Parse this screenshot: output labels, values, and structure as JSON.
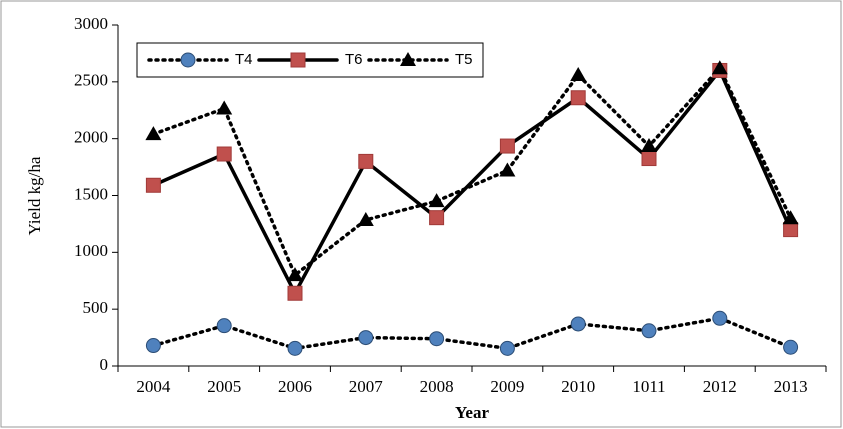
{
  "chart_data": {
    "type": "line",
    "y_label": "Yield kg/ha",
    "x_label": "Year",
    "categories": [
      "2004",
      "2005",
      "2006",
      "2007",
      "2008",
      "2009",
      "2010",
      "1011",
      "2012",
      "2013"
    ],
    "series": [
      {
        "name": "T4",
        "color": "#4f81bd",
        "line_color": "#000000",
        "line_style": "dotted",
        "marker": "circle",
        "values": [
          180,
          355,
          155,
          250,
          240,
          155,
          370,
          310,
          420,
          165
        ]
      },
      {
        "name": "T6",
        "color": "#c0504d",
        "line_color": "#000000",
        "line_style": "solid",
        "marker": "square",
        "values": [
          1590,
          1865,
          640,
          1800,
          1305,
          1935,
          2360,
          1825,
          2600,
          1200
        ]
      },
      {
        "name": "T5",
        "color": "#000000",
        "line_color": "#000000",
        "line_style": "dotted",
        "marker": "triangle",
        "values": [
          2040,
          2265,
          800,
          1285,
          1450,
          1720,
          2560,
          1935,
          2620,
          1300
        ]
      }
    ],
    "ylim": [
      0,
      3000
    ],
    "yticks": [
      0,
      500,
      1000,
      1500,
      2000,
      2500,
      3000
    ],
    "legend": "top-left"
  }
}
